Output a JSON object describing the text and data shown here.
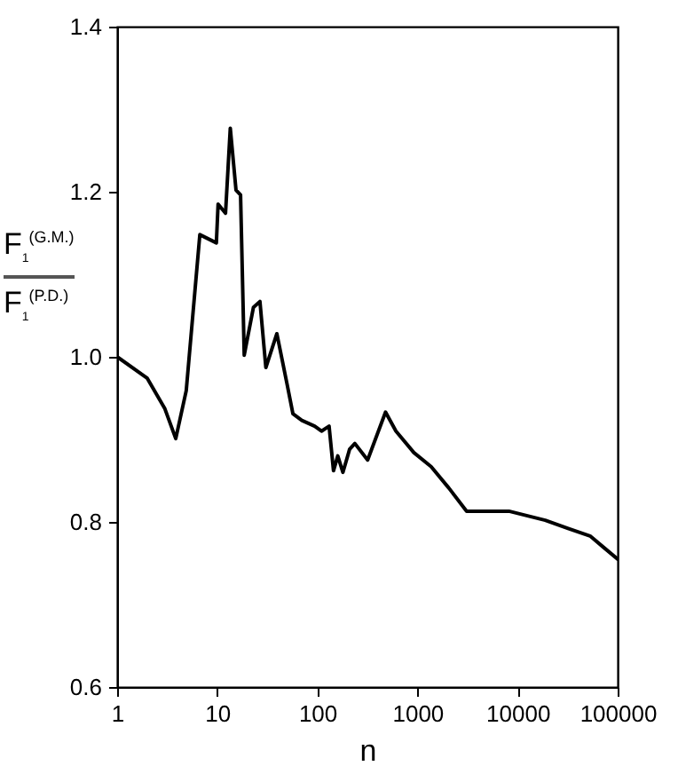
{
  "chart_data": {
    "type": "line",
    "xlabel": "n",
    "ylabel": "F$_{1}$$^{(G.M.)}$ F$_{1}$$^{(P.D.)}$",
    "log": "x",
    "xlim": [
      1,
      100000
    ],
    "xticks": [
      1,
      10,
      100,
      1000,
      10000,
      100000
    ],
    "ylim": [
      0.6,
      1.4
    ],
    "yticks": [
      0.6,
      0.8,
      {
        "value": 1,
        "label": "1.0"
      },
      1.2,
      1.4
    ],
    "grid": false,
    "marker": "none",
    "line_style": "solid",
    "series": [
      {
        "color": "#000000",
        "x": [
          1,
          2,
          3,
          3.85,
          4.9,
          6.7,
          9.8,
          10.2,
          12.1,
          13.5,
          15.4,
          17.1,
          18.6,
          23,
          26.7,
          30.6,
          39.4,
          50,
          57,
          70,
          94,
          110,
          131,
          145,
          160,
          180,
          210,
          237,
          318,
          480,
          610,
          920,
          1370,
          2060,
          3100,
          8200,
          18900,
          32000,
          53000,
          71000,
          100000
        ],
        "values": [
          1.0,
          0.974,
          0.937,
          0.901,
          0.959,
          1.148,
          1.138,
          1.185,
          1.174,
          1.277,
          1.202,
          1.196,
          1.002,
          1.06,
          1.067,
          0.987,
          1.028,
          0.966,
          0.931,
          0.923,
          0.916,
          0.91,
          0.916,
          0.862,
          0.88,
          0.86,
          0.888,
          0.895,
          0.875,
          0.933,
          0.91,
          0.884,
          0.867,
          0.841,
          0.813,
          0.813,
          0.802,
          0.792,
          0.783,
          0.77,
          0.755
        ]
      }
    ]
  }
}
